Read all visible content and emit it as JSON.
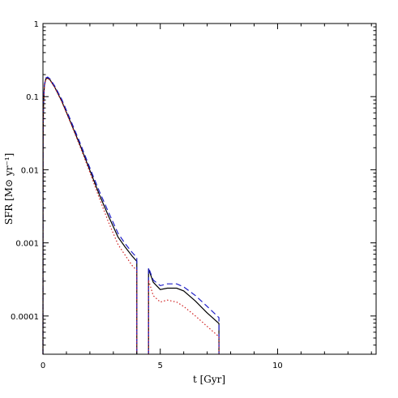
{
  "chart_data": {
    "type": "line",
    "xlabel": "t [Gyr]",
    "ylabel": "SFR [M⊙ yr⁻¹]",
    "xlim": [
      0,
      14.2
    ],
    "ylim": [
      3e-05,
      1
    ],
    "yscale": "log",
    "grid": false,
    "x_ticks": [
      {
        "value": 0,
        "label": "0"
      },
      {
        "value": 5,
        "label": "5"
      },
      {
        "value": 10,
        "label": "10"
      }
    ],
    "y_ticks": [
      {
        "value": 0.0001,
        "label": "0.0001"
      },
      {
        "value": 0.001,
        "label": "0.001"
      },
      {
        "value": 0.01,
        "label": "0.01"
      },
      {
        "value": 0.1,
        "label": "0.1"
      },
      {
        "value": 1,
        "label": "1"
      }
    ],
    "series": [
      {
        "style": "solid",
        "color": "#000000",
        "segments": [
          [
            [
              0.0,
              3e-05
            ],
            [
              0.005,
              0.02
            ],
            [
              0.02,
              0.07
            ],
            [
              0.06,
              0.14
            ],
            [
              0.12,
              0.175
            ],
            [
              0.2,
              0.18
            ],
            [
              0.3,
              0.17
            ],
            [
              0.5,
              0.135
            ],
            [
              0.8,
              0.087
            ],
            [
              1.2,
              0.043
            ],
            [
              1.6,
              0.021
            ],
            [
              2.0,
              0.0098
            ],
            [
              2.4,
              0.0046
            ],
            [
              2.8,
              0.0023
            ],
            [
              3.2,
              0.0012
            ],
            [
              3.5,
              0.00088
            ],
            [
              3.8,
              0.00066
            ],
            [
              4.0,
              0.00056
            ],
            [
              4.0,
              3e-05
            ]
          ],
          [
            [
              4.5,
              3e-05
            ],
            [
              4.5,
              0.00044
            ],
            [
              4.7,
              0.00029
            ],
            [
              5.0,
              0.00023
            ],
            [
              5.3,
              0.00024
            ],
            [
              5.7,
              0.00024
            ],
            [
              6.0,
              0.00022
            ],
            [
              6.5,
              0.00016
            ],
            [
              7.0,
              0.00011
            ],
            [
              7.5,
              7.9e-05
            ],
            [
              7.5,
              3e-05
            ]
          ]
        ]
      },
      {
        "style": "dashed",
        "color": "#2020c8",
        "segments": [
          [
            [
              0.0,
              3e-05
            ],
            [
              0.005,
              0.021
            ],
            [
              0.02,
              0.072
            ],
            [
              0.06,
              0.145
            ],
            [
              0.12,
              0.18
            ],
            [
              0.2,
              0.185
            ],
            [
              0.3,
              0.175
            ],
            [
              0.5,
              0.14
            ],
            [
              0.8,
              0.092
            ],
            [
              1.2,
              0.046
            ],
            [
              1.6,
              0.0225
            ],
            [
              2.0,
              0.0106
            ],
            [
              2.4,
              0.0051
            ],
            [
              2.8,
              0.0026
            ],
            [
              3.2,
              0.00135
            ],
            [
              3.5,
              0.00098
            ],
            [
              3.8,
              0.00074
            ],
            [
              4.0,
              0.00063
            ],
            [
              4.0,
              3e-05
            ]
          ],
          [
            [
              4.5,
              3e-05
            ],
            [
              4.5,
              0.00046
            ],
            [
              4.7,
              0.00031
            ],
            [
              5.0,
              0.00026
            ],
            [
              5.3,
              0.000275
            ],
            [
              5.7,
              0.000275
            ],
            [
              6.0,
              0.00025
            ],
            [
              6.5,
              0.00019
            ],
            [
              7.0,
              0.000135
            ],
            [
              7.5,
              9.5e-05
            ],
            [
              7.5,
              3e-05
            ]
          ]
        ]
      },
      {
        "style": "dotted",
        "color": "#d02020",
        "segments": [
          [
            [
              0.0,
              3e-05
            ],
            [
              0.005,
              0.02
            ],
            [
              0.02,
              0.068
            ],
            [
              0.06,
              0.14
            ],
            [
              0.12,
              0.172
            ],
            [
              0.2,
              0.178
            ],
            [
              0.3,
              0.168
            ],
            [
              0.5,
              0.133
            ],
            [
              0.8,
              0.085
            ],
            [
              1.2,
              0.042
            ],
            [
              1.6,
              0.02
            ],
            [
              2.0,
              0.0092
            ],
            [
              2.4,
              0.0041
            ],
            [
              2.8,
              0.0019
            ],
            [
              3.2,
              0.00095
            ],
            [
              3.5,
              0.00068
            ],
            [
              3.8,
              0.00049
            ],
            [
              4.0,
              0.00042
            ],
            [
              4.0,
              3e-05
            ]
          ],
          [
            [
              4.5,
              3e-05
            ],
            [
              4.5,
              0.00031
            ],
            [
              4.7,
              0.00019
            ],
            [
              5.0,
              0.000155
            ],
            [
              5.3,
              0.000165
            ],
            [
              5.7,
              0.000155
            ],
            [
              6.0,
              0.000135
            ],
            [
              6.5,
              0.0001
            ],
            [
              7.0,
              7.2e-05
            ],
            [
              7.5,
              5.2e-05
            ],
            [
              7.5,
              3e-05
            ]
          ]
        ]
      }
    ]
  }
}
